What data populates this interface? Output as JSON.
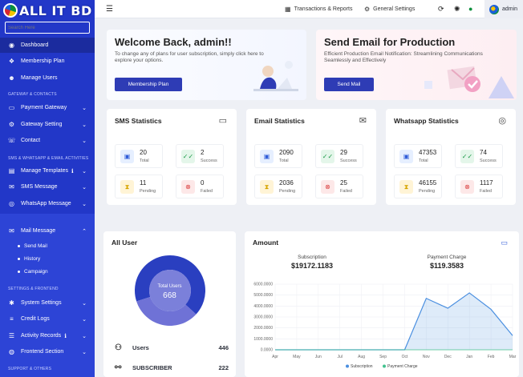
{
  "app": {
    "logo_text": "ALL IT BD"
  },
  "sidebar": {
    "search_placeholder": "Search Here",
    "sections": [
      "GATEWAY & CONTACTS",
      "SMS & WHATSAPP & EMAIL ACTIVITIES",
      "SETTINGS & FRONTEND",
      "SUPPORT & OTHERS"
    ],
    "items": [
      {
        "label": "Dashboard",
        "icon": "dashboard-icon"
      },
      {
        "label": "Membership Plan",
        "icon": "membership-icon"
      },
      {
        "label": "Manage Users",
        "icon": "users-icon"
      },
      {
        "label": "Payment Gateway",
        "icon": "payment-icon"
      },
      {
        "label": "Gateway Setting",
        "icon": "gateway-icon"
      },
      {
        "label": "Contact",
        "icon": "contact-icon"
      },
      {
        "label": "Manage Templates",
        "icon": "template-icon"
      },
      {
        "label": "SMS Message",
        "icon": "sms-icon"
      },
      {
        "label": "WhatsApp Message",
        "icon": "whatsapp-icon"
      },
      {
        "label": "Mail Message",
        "icon": "mail-icon"
      },
      {
        "label": "System Settings",
        "icon": "settings-icon"
      },
      {
        "label": "Credit Logs",
        "icon": "credit-icon"
      },
      {
        "label": "Activity Records",
        "icon": "activity-icon"
      },
      {
        "label": "Frontend Section",
        "icon": "frontend-icon"
      }
    ],
    "mail_sub": [
      "Send Mail",
      "History",
      "Campaign"
    ]
  },
  "topbar": {
    "transactions": "Transactions & Reports",
    "general_settings": "General Settings",
    "admin": "admin"
  },
  "welcome": {
    "title": "Welcome Back, admin!!",
    "text_line1": "To change any of plans for user subscription, simply click here to",
    "text_line2": "explore your options.",
    "button": "Membership Plan"
  },
  "sendmail": {
    "title": "Send Email for Production",
    "text_line1": "Efficient Production Email Notification: Streamlining Communications",
    "text_line2": "Seamlessly and Effectively",
    "button": "Send Mail"
  },
  "stats": [
    {
      "title": "SMS Statistics",
      "icon": "message-icon",
      "total": "20",
      "success": "2",
      "pending": "11",
      "failed": "0"
    },
    {
      "title": "Email Statistics",
      "icon": "envelope-icon",
      "total": "2090",
      "success": "29",
      "pending": "2036",
      "failed": "25"
    },
    {
      "title": "Whatsapp Statistics",
      "icon": "whatsapp-icon",
      "total": "47353",
      "success": "74",
      "pending": "46155",
      "failed": "1117"
    }
  ],
  "stat_labels": {
    "total": "Total",
    "success": "Success",
    "pending": "Pending",
    "failed": "Failed"
  },
  "alluser": {
    "title": "All User",
    "center_label": "Total Users",
    "center_value": "668",
    "rows": [
      {
        "label": "Users",
        "value": "446",
        "icon": "users-group-icon"
      },
      {
        "label": "SUBSCRIBER",
        "value": "222",
        "icon": "subscriber-icon"
      }
    ],
    "colors": {
      "users": "#2a3fc0",
      "subscriber": "#6f72d6"
    }
  },
  "amount": {
    "title": "Amount",
    "subscription_label": "Subscription",
    "subscription_value": "$19172.1183",
    "payment_label": "Payment Charge",
    "payment_value": "$119.3583"
  },
  "chart_data": {
    "type": "area",
    "categories": [
      "Apr",
      "May",
      "Jun",
      "Jul",
      "Aug",
      "Sep",
      "Oct",
      "Nov",
      "Dec",
      "Jan",
      "Feb",
      "Mar"
    ],
    "y_ticks": [
      "0.0000",
      "1000.0000",
      "2000.0000",
      "3000.0000",
      "4000.0000",
      "5000.0000",
      "6000.0000"
    ],
    "ylim": [
      0,
      6000
    ],
    "series": [
      {
        "name": "Subscription",
        "color": "#4a8fe0",
        "values": [
          0,
          0,
          0,
          0,
          0,
          0,
          0,
          4700,
          3800,
          5200,
          3700,
          1300
        ]
      },
      {
        "name": "Payment Charge",
        "color": "#43c28f",
        "values": [
          0,
          0,
          0,
          0,
          0,
          0,
          0,
          0,
          0,
          0,
          0,
          0
        ]
      }
    ],
    "legend": "bottom",
    "grid": true
  }
}
